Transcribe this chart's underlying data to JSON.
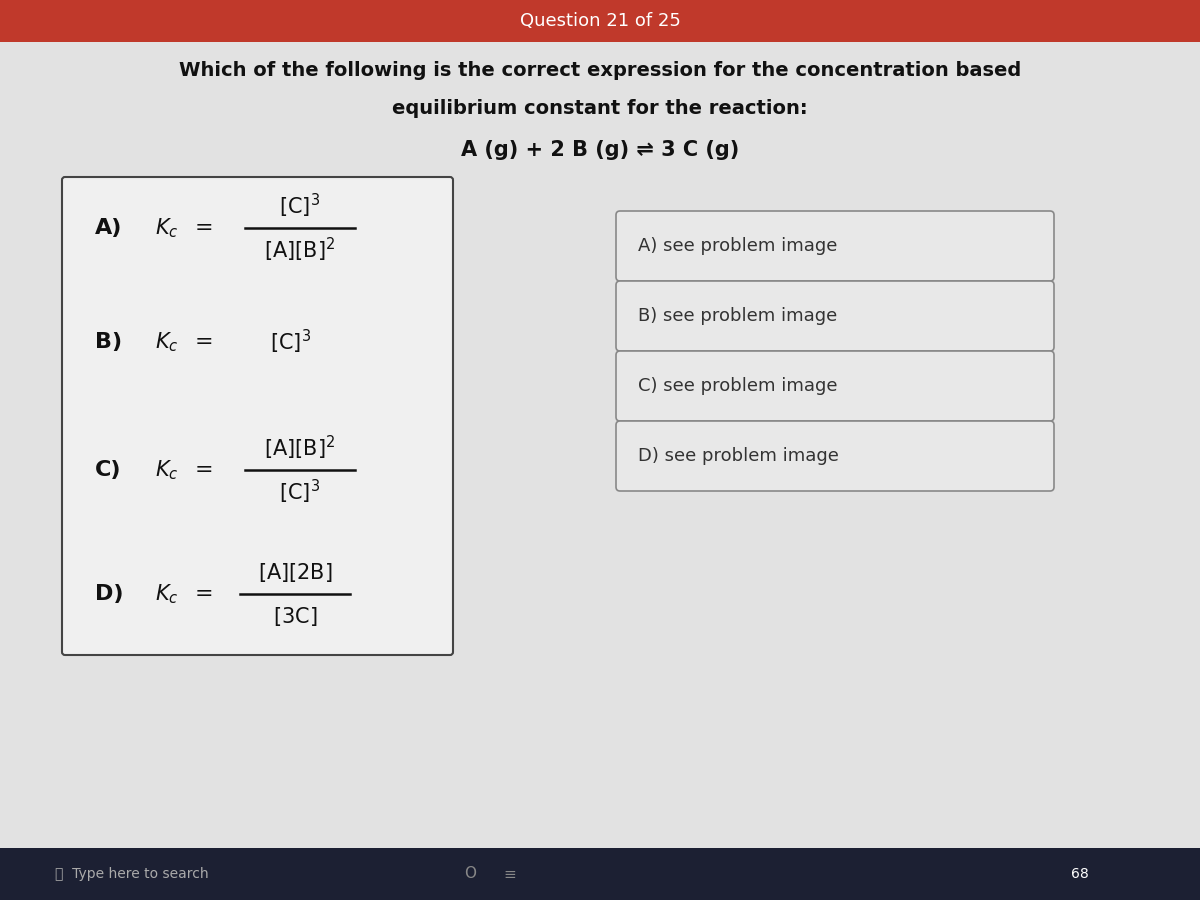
{
  "header_text": "Question 21 of 25",
  "header_bg": "#c0392b",
  "header_text_color": "#ffffff",
  "bg_color": "#c8c8c8",
  "main_bg": "#e2e2e2",
  "question_line1": "Which of the following is the correct expression for the concentration based",
  "question_line2": "equilibrium constant for the reaction:",
  "question_line3": "A (g) + 2 B (g) ⇌ 3 C (g)",
  "left_box_facecolor": "#f0f0f0",
  "left_box_border": "#444444",
  "right_box_facecolor": "#e8e8e8",
  "right_box_border": "#888888",
  "right_options": [
    "A) see problem image",
    "B) see problem image",
    "C) see problem image",
    "D) see problem image"
  ],
  "taskbar_color": "#1c2033"
}
